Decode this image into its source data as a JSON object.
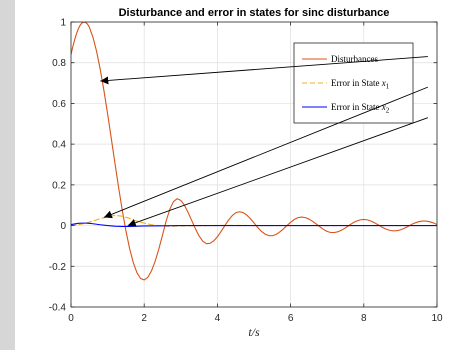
{
  "chart_data": {
    "type": "line",
    "title": "Disturbance and error in states for sinc disturbance",
    "xlabel": "t/s",
    "ylabel": "",
    "xlim": [
      0,
      10
    ],
    "ylim": [
      -0.4,
      1
    ],
    "xticks": [
      0,
      2,
      4,
      6,
      8,
      10
    ],
    "yticks": [
      -0.4,
      -0.2,
      0,
      0.2,
      0.4,
      0.6,
      0.8,
      1
    ],
    "xtick_labels": [
      "0",
      "2",
      "4",
      "6",
      "8",
      "10"
    ],
    "ytick_labels": [
      "-0.4",
      "-0.2",
      "0",
      "0.2",
      "0.4",
      "0.6",
      "0.8",
      "1"
    ],
    "grid": true,
    "legend_position": "top-right",
    "series": [
      {
        "name": "Disturbances",
        "label_base": "Disturbances",
        "label_sub": "",
        "color": "#d95319",
        "style": "solid",
        "x": [
          0,
          0.05,
          0.1,
          0.15,
          0.2,
          0.25,
          0.3,
          0.35,
          0.4,
          0.45,
          0.5,
          0.6,
          0.7,
          0.8,
          0.9,
          1.0,
          1.1,
          1.2,
          1.3,
          1.4,
          1.5,
          1.6,
          1.7,
          1.8,
          1.9,
          2.0,
          2.1,
          2.2,
          2.3,
          2.4,
          2.5,
          2.6,
          2.7,
          2.8,
          2.9,
          3.0,
          3.1,
          3.2,
          3.3,
          3.4,
          3.5,
          3.6,
          3.7,
          3.8,
          3.9,
          4.0,
          4.1,
          4.2,
          4.3,
          4.4,
          4.5,
          4.6,
          4.7,
          4.8,
          4.9,
          5.0,
          5.1,
          5.2,
          5.3,
          5.4,
          5.5,
          5.6,
          5.7,
          5.8,
          5.9,
          6.0,
          6.1,
          6.2,
          6.3,
          6.4,
          6.5,
          6.6,
          6.7,
          6.8,
          6.9,
          7.0,
          7.1,
          7.2,
          7.3,
          7.4,
          7.5,
          7.6,
          7.7,
          7.8,
          7.9,
          8.0,
          8.1,
          8.2,
          8.3,
          8.4,
          8.5,
          8.6,
          8.7,
          8.8,
          8.9,
          9.0,
          9.1,
          9.2,
          9.3,
          9.4,
          9.5,
          9.6,
          9.7,
          9.8,
          9.9,
          10.0
        ],
        "y": [
          0.841,
          0.879,
          0.913,
          0.942,
          0.966,
          0.984,
          0.995,
          1.0,
          0.998,
          0.99,
          0.975,
          0.925,
          0.855,
          0.766,
          0.663,
          0.549,
          0.429,
          0.307,
          0.188,
          0.076,
          -0.025,
          -0.112,
          -0.181,
          -0.231,
          -0.26,
          -0.267,
          -0.254,
          -0.222,
          -0.175,
          -0.115,
          -0.047,
          0.023,
          0.08,
          0.118,
          0.132,
          0.124,
          0.1,
          0.064,
          0.024,
          -0.016,
          -0.051,
          -0.076,
          -0.089,
          -0.087,
          -0.075,
          -0.055,
          -0.029,
          -0.001,
          0.026,
          0.048,
          0.063,
          0.068,
          0.064,
          0.052,
          0.034,
          0.013,
          -0.009,
          -0.028,
          -0.042,
          -0.049,
          -0.05,
          -0.044,
          -0.032,
          -0.017,
          0.0,
          0.016,
          0.03,
          0.039,
          0.042,
          0.039,
          0.032,
          0.021,
          0.008,
          -0.006,
          -0.019,
          -0.029,
          -0.034,
          -0.034,
          -0.03,
          -0.022,
          -0.011,
          0.001,
          0.013,
          0.022,
          0.028,
          0.03,
          0.028,
          0.022,
          0.013,
          0.003,
          -0.008,
          -0.017,
          -0.023,
          -0.026,
          -0.025,
          -0.021,
          -0.014,
          -0.005,
          0.005,
          0.013,
          0.019,
          0.022,
          0.022,
          0.019,
          0.013,
          0.005
        ]
      },
      {
        "name": "Error in State x1",
        "label_base": "Error in State ",
        "label_sub": "1",
        "color": "#edb120",
        "style": "dashed",
        "x": [
          0,
          0.2,
          0.4,
          0.6,
          0.8,
          1.0,
          1.2,
          1.4,
          1.6,
          1.8,
          2.0,
          2.2,
          2.4,
          2.6,
          2.8,
          3.0,
          3.4,
          3.8,
          4.2,
          4.6,
          5.0,
          6.0,
          7.0,
          8.0,
          9.0,
          10.0
        ],
        "y": [
          0.0,
          0.004,
          0.012,
          0.022,
          0.034,
          0.044,
          0.05,
          0.046,
          0.035,
          0.022,
          0.012,
          0.004,
          -0.001,
          -0.003,
          -0.003,
          -0.002,
          -0.001,
          0.0,
          0.001,
          0.001,
          0.0,
          0.0,
          0.0,
          0.0,
          0.0,
          0.0
        ]
      },
      {
        "name": "Error in State x2",
        "label_base": "Error in State ",
        "label_sub": "2",
        "color": "#0000ff",
        "style": "solid",
        "x": [
          0,
          0.1,
          0.2,
          0.3,
          0.4,
          0.5,
          0.6,
          0.8,
          1.0,
          1.2,
          1.4,
          1.6,
          1.8,
          2.0,
          2.5,
          3.0,
          3.5,
          4.0,
          5.0,
          6.0,
          7.0,
          8.0,
          9.0,
          10.0
        ],
        "y": [
          0.005,
          0.008,
          0.011,
          0.012,
          0.012,
          0.011,
          0.009,
          0.004,
          0.0,
          -0.003,
          -0.004,
          -0.004,
          -0.003,
          -0.002,
          -0.001,
          0.0,
          0.0,
          0.0,
          0.0,
          0.0,
          0.0,
          0.0,
          0.0,
          0.0
        ]
      }
    ],
    "annotations": [
      {
        "type": "arrow",
        "from": [
          9.75,
          0.83
        ],
        "to": [
          0.8,
          0.71
        ]
      },
      {
        "type": "arrow",
        "from": [
          9.75,
          0.68
        ],
        "to": [
          0.9,
          0.04
        ]
      },
      {
        "type": "arrow",
        "from": [
          9.75,
          0.53
        ],
        "to": [
          1.55,
          0.0
        ]
      }
    ]
  }
}
